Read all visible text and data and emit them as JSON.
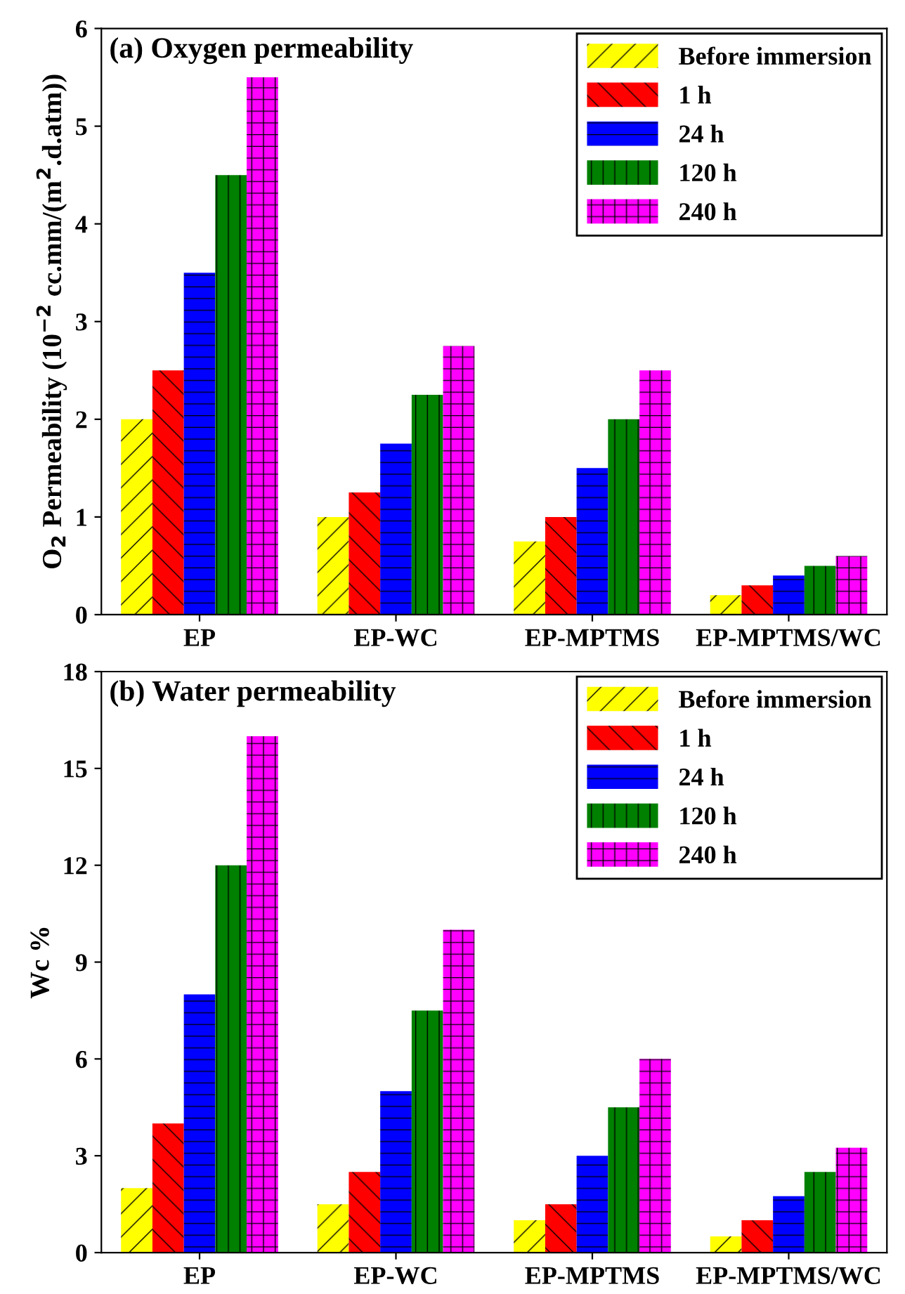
{
  "chart_data": [
    {
      "type": "bar",
      "title": "(a) Oxygen permeability",
      "ylabel": "O$_{2}$ Permeability (10$^{−2}$ cc.mm/(m$^{2}$.d.atm))",
      "categories": [
        "EP",
        "EP-WC",
        "EP-MPTMS",
        "EP-MPTMS/WC"
      ],
      "series": [
        {
          "name": "Before immersion",
          "color": "#ffff00",
          "values": [
            2,
            1,
            0.75,
            0.2
          ]
        },
        {
          "name": "1 h",
          "color": "#ff0000",
          "values": [
            2.5,
            1.25,
            1,
            0.3
          ]
        },
        {
          "name": "24 h",
          "color": "#0000ff",
          "values": [
            3.5,
            1.75,
            1.5,
            0.4
          ]
        },
        {
          "name": "120 h",
          "color": "#008000",
          "values": [
            4.5,
            2.25,
            2,
            0.5
          ]
        },
        {
          "name": "240 h",
          "color": "#ff00ff",
          "values": [
            5.5,
            2.75,
            2.5,
            0.6
          ]
        }
      ],
      "ylim": [
        0,
        6
      ],
      "yticks": [
        0,
        1,
        2,
        3,
        4,
        5,
        6
      ],
      "legend": "top right",
      "grid": false
    },
    {
      "type": "bar",
      "title": "(b) Water permeability",
      "ylabel": "Wc %",
      "categories": [
        "EP",
        "EP-WC",
        "EP-MPTMS",
        "EP-MPTMS/WC"
      ],
      "series": [
        {
          "name": "Before immersion",
          "color": "#ffff00",
          "values": [
            2,
            1.5,
            1,
            0.5
          ]
        },
        {
          "name": "1 h",
          "color": "#ff0000",
          "values": [
            4,
            2.5,
            1.5,
            1
          ]
        },
        {
          "name": "24 h",
          "color": "#0000ff",
          "values": [
            8,
            5,
            3,
            1.75
          ]
        },
        {
          "name": "120 h",
          "color": "#008000",
          "values": [
            12,
            7.5,
            4.5,
            2.5
          ]
        },
        {
          "name": "240 h",
          "color": "#ff00ff",
          "values": [
            16,
            10,
            6,
            3.25
          ]
        }
      ],
      "ylim": [
        0,
        18
      ],
      "yticks": [
        0,
        3,
        6,
        9,
        12,
        15,
        18
      ],
      "legend": "top right",
      "grid": false
    }
  ]
}
